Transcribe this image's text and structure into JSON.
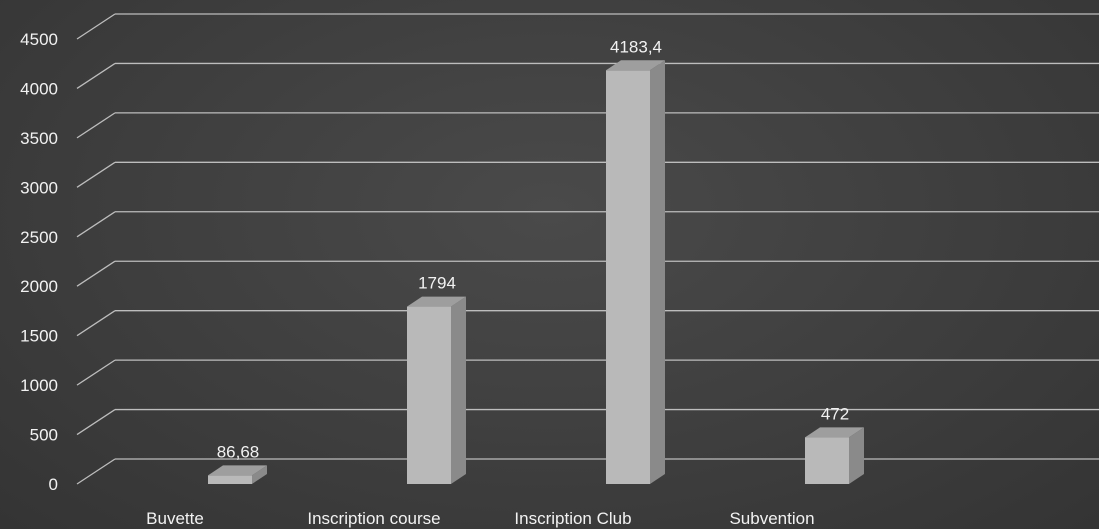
{
  "chart_data": {
    "type": "bar",
    "title": "",
    "xlabel": "",
    "ylabel": "",
    "categories": [
      "Buvette",
      "Inscription course",
      "Inscription Club",
      "Subvention"
    ],
    "values": [
      86.68,
      1794,
      4183.4,
      472
    ],
    "data_labels": [
      "86,68",
      "1794",
      "4183,4",
      "472"
    ],
    "y_ticks": [
      0,
      500,
      1000,
      1500,
      2000,
      2500,
      3000,
      3500,
      4000,
      4500
    ],
    "ylim": [
      0,
      4500
    ],
    "grid": true,
    "legend": "none",
    "style": "3d-column",
    "colors": {
      "bar_front": "#b9b9b9",
      "bar_side": "#8a8a8a",
      "bar_top": "#9e9e9e",
      "label_text": "#f2f2f2",
      "grid": "#bdbdbd"
    }
  }
}
